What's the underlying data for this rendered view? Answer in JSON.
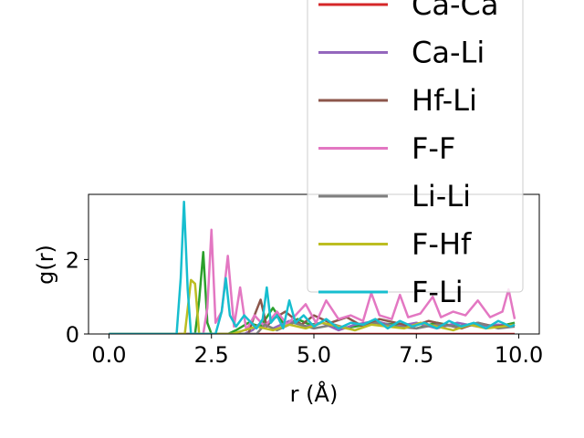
{
  "chart_data": {
    "type": "line",
    "title": "",
    "xlabel": "r (Å)",
    "ylabel": "g(r)",
    "xlim": [
      -0.5,
      10.5
    ],
    "ylim": [
      0,
      3.75
    ],
    "xticks": [
      0.0,
      2.5,
      5.0,
      7.5,
      10.0
    ],
    "xtick_labels": [
      "0.0",
      "2.5",
      "5.0",
      "7.5",
      "10.0"
    ],
    "yticks": [
      0,
      2
    ],
    "ytick_labels": [
      "0",
      "2"
    ],
    "grid": false,
    "legend_position": "upper-right",
    "series": [
      {
        "name": "Ca-Ca",
        "color": "#d62728",
        "lw": 2.5,
        "x": [
          0,
          9.9
        ],
        "y": [
          0,
          0
        ]
      },
      {
        "name": "Ca-Li",
        "color": "#9467bd",
        "lw": 2.5,
        "x": [
          0,
          3.3,
          3.5,
          3.7,
          4.0,
          4.4,
          4.8,
          5.2,
          5.6,
          6.0,
          6.5,
          7.0,
          7.5,
          8.0,
          8.5,
          9.0,
          9.5,
          9.9
        ],
        "y": [
          0,
          0,
          0.1,
          0.3,
          0.15,
          0.35,
          0.2,
          0.3,
          0.1,
          0.25,
          0.35,
          0.2,
          0.3,
          0.15,
          0.3,
          0.2,
          0.25,
          0.2
        ]
      },
      {
        "name": "Hf-Li",
        "color": "#8c564b",
        "lw": 2.5,
        "x": [
          0,
          3.4,
          3.55,
          3.7,
          3.85,
          4.0,
          4.3,
          4.7,
          5.0,
          5.4,
          5.8,
          6.2,
          6.6,
          7.0,
          7.4,
          7.8,
          8.2,
          8.6,
          9.0,
          9.4,
          9.9
        ],
        "y": [
          0,
          0,
          0.5,
          0.92,
          0.2,
          0.4,
          0.6,
          0.25,
          0.5,
          0.3,
          0.45,
          0.2,
          0.4,
          0.3,
          0.2,
          0.35,
          0.25,
          0.15,
          0.3,
          0.2,
          0.25
        ]
      },
      {
        "name": "F-F",
        "color": "#e377c2",
        "lw": 2.5,
        "x": [
          0,
          2.3,
          2.4,
          2.5,
          2.6,
          2.75,
          2.9,
          3.05,
          3.2,
          3.35,
          3.55,
          3.8,
          4.1,
          4.35,
          4.55,
          4.8,
          5.05,
          5.3,
          5.6,
          5.9,
          6.2,
          6.4,
          6.6,
          6.9,
          7.1,
          7.3,
          7.6,
          7.9,
          8.1,
          8.4,
          8.7,
          9.0,
          9.3,
          9.6,
          9.75,
          9.9
        ],
        "y": [
          0,
          0,
          0.7,
          2.8,
          0.3,
          0.6,
          2.1,
          0.2,
          1.25,
          0.1,
          0.5,
          0.2,
          0.6,
          0.25,
          0.5,
          0.8,
          0.3,
          0.9,
          0.4,
          0.5,
          0.35,
          1.1,
          0.5,
          0.4,
          1.05,
          0.45,
          0.55,
          1.0,
          0.45,
          0.6,
          0.5,
          0.9,
          0.45,
          0.6,
          1.2,
          0.4
        ]
      },
      {
        "name": "Li-Li",
        "color": "#7f7f7f",
        "lw": 2.5,
        "x": [
          0,
          3.6,
          3.8,
          4.1,
          4.5,
          5.0,
          5.5,
          6.0,
          6.5,
          7.0,
          7.5,
          8.0,
          8.5,
          9.0,
          9.5,
          9.9
        ],
        "y": [
          0,
          0,
          0.25,
          0.1,
          0.3,
          0.15,
          0.25,
          0.1,
          0.3,
          0.2,
          0.15,
          0.25,
          0.2,
          0.3,
          0.15,
          0.2
        ]
      },
      {
        "name": "F-Hf",
        "color": "#bcbd22",
        "lw": 2.5,
        "x": [
          0,
          1.85,
          2.0,
          2.1,
          2.2,
          2.3,
          2.5,
          3.0,
          3.6,
          4.0,
          4.4,
          4.8,
          5.2,
          5.6,
          6.0,
          6.4,
          6.8,
          7.2,
          7.6,
          8.0,
          8.4,
          8.8,
          9.2,
          9.6,
          9.9
        ],
        "y": [
          0,
          0,
          1.45,
          1.35,
          0,
          0,
          0,
          0,
          0.2,
          0.1,
          0.25,
          0.15,
          0.3,
          0.2,
          0.1,
          0.25,
          0.2,
          0.15,
          0.3,
          0.2,
          0.1,
          0.25,
          0.15,
          0.2,
          0.25
        ]
      },
      {
        "name": "F-Li",
        "color": "#17becf",
        "lw": 2.5,
        "x": [
          0,
          1.65,
          1.75,
          1.83,
          1.92,
          2.0,
          2.6,
          2.75,
          2.85,
          2.95,
          3.1,
          3.3,
          3.6,
          3.75,
          3.85,
          3.95,
          4.1,
          4.25,
          4.4,
          4.55,
          4.75,
          5.0,
          5.3,
          5.6,
          5.9,
          6.2,
          6.5,
          6.8,
          7.1,
          7.4,
          7.7,
          8.0,
          8.3,
          8.6,
          8.9,
          9.2,
          9.5,
          9.8,
          9.9
        ],
        "y": [
          0,
          0,
          1.5,
          3.55,
          1.2,
          0,
          0,
          0.6,
          1.5,
          0.5,
          0.2,
          0.5,
          0.15,
          0.4,
          1.25,
          0.3,
          0.5,
          0.15,
          0.9,
          0.3,
          0.5,
          0.2,
          0.4,
          0.15,
          0.3,
          0.25,
          0.4,
          0.15,
          0.35,
          0.2,
          0.3,
          0.15,
          0.35,
          0.2,
          0.3,
          0.15,
          0.35,
          0.2,
          0.25
        ]
      },
      {
        "name": "",
        "color": "#2ca02c",
        "lw": 2.5,
        "x": [
          0,
          2.1,
          2.2,
          2.3,
          2.4,
          2.5,
          2.9,
          3.1,
          3.4,
          3.7,
          4.0,
          4.3,
          4.6,
          4.9,
          5.2,
          5.6,
          6.0,
          6.5,
          7.0,
          7.5,
          8.0,
          8.5,
          9.0,
          9.5,
          9.9
        ],
        "y": [
          0,
          0,
          0.9,
          2.2,
          0.3,
          0,
          0,
          0.1,
          0.3,
          0.2,
          0.7,
          0.2,
          0.4,
          0.25,
          0.3,
          0.15,
          0.2,
          0.3,
          0.25,
          0.15,
          0.3,
          0.2,
          0.25,
          0.2,
          0.3
        ]
      }
    ]
  }
}
